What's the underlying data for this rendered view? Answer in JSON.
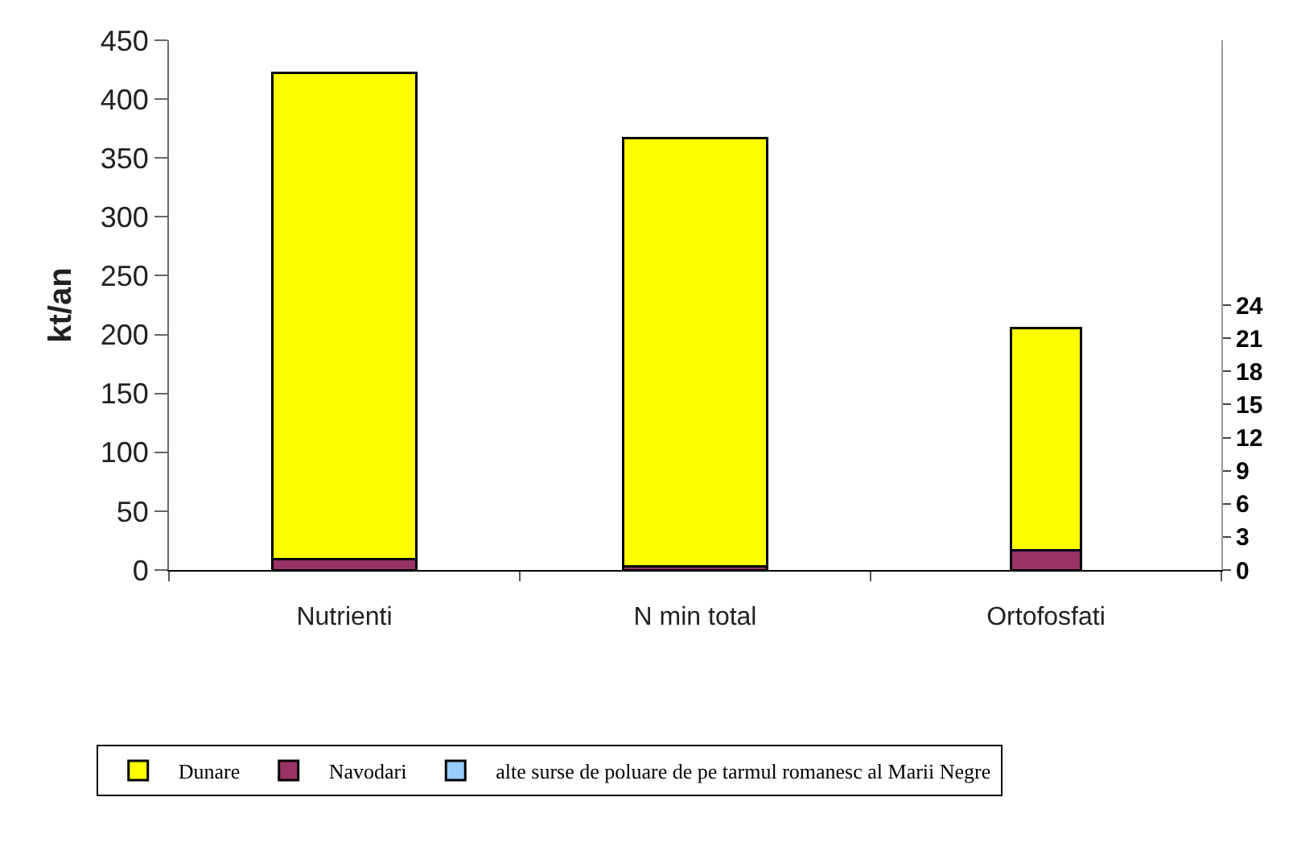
{
  "chart_data": {
    "type": "bar",
    "stacked": true,
    "ylabel": "kt/an",
    "legend": "bottom",
    "categories": [
      "Nutrienti",
      "N min total",
      "Ortofosfati"
    ],
    "series": [
      {
        "name": "alte surse de poluare de pe tarmul romanesc al Marii Negre",
        "color": "#99ccff",
        "values": [
          null,
          null,
          null
        ]
      },
      {
        "name": "Navodari",
        "color": "#993366",
        "values": [
          9,
          3,
          null
        ]
      },
      {
        "name": "Dunare",
        "color": "#ffff00",
        "values": [
          413,
          364,
          null
        ]
      },
      {
        "color": "#993366",
        "values": [
          null,
          null,
          1.8
        ],
        "axis": "y2"
      },
      {
        "color": "#ffff00",
        "values": [
          null,
          null,
          20.1
        ],
        "axis": "y2"
      }
    ],
    "ylim": [
      0,
      450
    ],
    "yticks": [
      0,
      50,
      100,
      150,
      200,
      250,
      300,
      350,
      400,
      450
    ],
    "y2lim": [
      0,
      48
    ],
    "y2ticks": [
      0,
      3,
      6,
      9,
      12,
      15,
      18,
      21,
      24
    ]
  }
}
